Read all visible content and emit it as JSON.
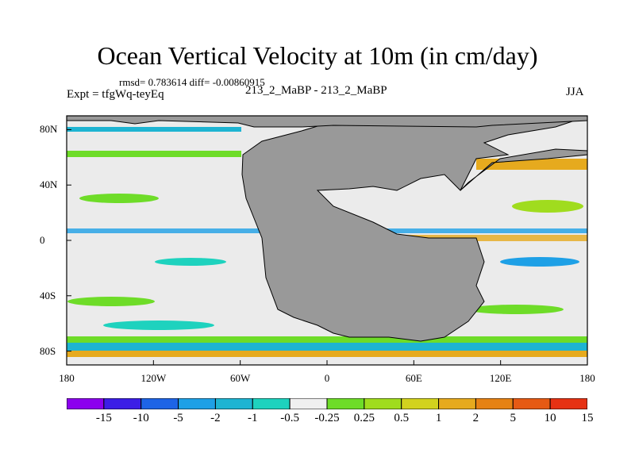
{
  "title": "Ocean Vertical Velocity at 10m (in cm/day)",
  "stats": "rmsd= 0.783614  diff= -0.00860915",
  "experiment": "Expt = tfgWq-teyEq",
  "cases": "213_2_MaBP - 213_2_MaBP",
  "season": "JJA",
  "map": {
    "land_color": "#999999",
    "ocean_base_color": "#ebebeb",
    "lon_range": [
      -180,
      180
    ],
    "lat_range": [
      -90,
      90
    ],
    "x_ticks": [
      {
        "lon": -180,
        "label": "180"
      },
      {
        "lon": -120,
        "label": "120W"
      },
      {
        "lon": -60,
        "label": "60W"
      },
      {
        "lon": 0,
        "label": "0"
      },
      {
        "lon": 60,
        "label": "60E"
      },
      {
        "lon": 120,
        "label": "120E"
      },
      {
        "lon": 180,
        "label": "180"
      }
    ],
    "y_ticks": [
      {
        "lat": 80,
        "label": "80N"
      },
      {
        "lat": 40,
        "label": "40N"
      },
      {
        "lat": 0,
        "label": "0"
      },
      {
        "lat": -40,
        "label": "40S"
      },
      {
        "lat": -80,
        "label": "80S"
      }
    ]
  },
  "colorbar": {
    "colors": [
      "#8c00ee",
      "#3c1ee6",
      "#1e64e6",
      "#1ea0e6",
      "#1eb4d2",
      "#1ed2be",
      "#f0f0f0",
      "#6edc28",
      "#a0dc1e",
      "#d2d21e",
      "#e6aa1e",
      "#e68214",
      "#e65a14",
      "#e63214"
    ],
    "labels": [
      "-15",
      "-10",
      "-5",
      "-2",
      "-1",
      "-0.5",
      "-0.25",
      "0.25",
      "0.5",
      "1",
      "2",
      "5",
      "10",
      "15"
    ]
  }
}
